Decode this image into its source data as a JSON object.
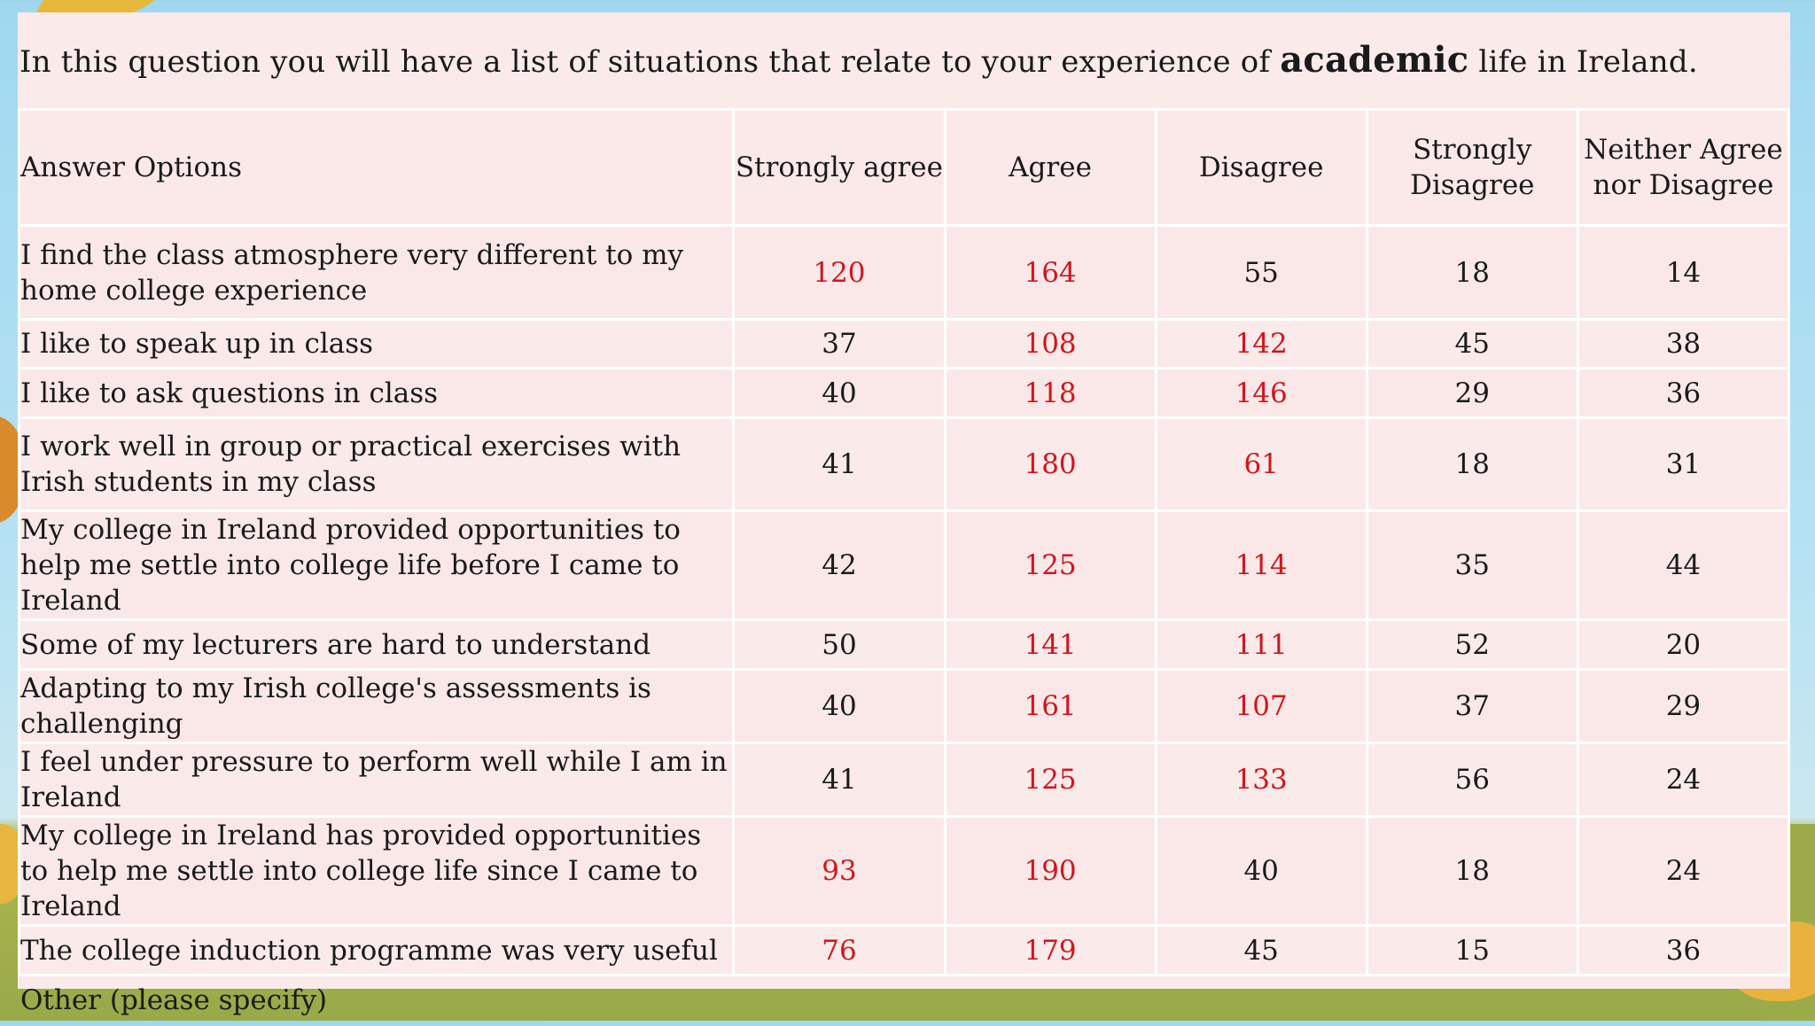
{
  "title": {
    "prefix": "In this question you will have a list of situations that relate to your experience of ",
    "emphasis": "academic",
    "suffix": " life in Ireland."
  },
  "table": {
    "header": {
      "answer_options": "Answer Options",
      "strongly_agree": "Strongly agree",
      "agree": "Agree",
      "disagree": "Disagree",
      "strongly_disagree": "Strongly Disagree",
      "neither": "Neither Agree nor Disagree"
    },
    "rows": [
      {
        "label": "I find the class atmosphere very different to my home college experience",
        "v": [
          "120",
          "164",
          "55",
          "18",
          "14"
        ]
      },
      {
        "label": "I like to speak up in class",
        "v": [
          "37",
          "108",
          "142",
          "45",
          "38"
        ]
      },
      {
        "label": "I like to ask questions in class",
        "v": [
          "40",
          "118",
          "146",
          "29",
          "36"
        ]
      },
      {
        "label": "I work well in group or practical exercises with Irish students in my class",
        "v": [
          "41",
          "180",
          "61",
          "18",
          "31"
        ]
      },
      {
        "label": "My college in Ireland provided opportunities to help me settle into college life before I came to Ireland",
        "v": [
          "42",
          "125",
          "114",
          "35",
          "44"
        ]
      },
      {
        "label": "Some of my lecturers are hard to understand",
        "v": [
          "50",
          "141",
          "111",
          "52",
          "20"
        ]
      },
      {
        "label": "Adapting to my Irish college's assessments is challenging",
        "v": [
          "40",
          "161",
          "107",
          "37",
          "29"
        ]
      },
      {
        "label": "I feel under pressure to perform well while I am in Ireland",
        "v": [
          "41",
          "125",
          "133",
          "56",
          "24"
        ]
      },
      {
        "label": "My college in Ireland has provided opportunities to help me settle into college life since I came to Ireland",
        "v": [
          "93",
          "190",
          "40",
          "18",
          "24"
        ]
      },
      {
        "label": "The college induction programme was very useful",
        "v": [
          "76",
          "179",
          "45",
          "15",
          "36"
        ]
      }
    ],
    "other": "Other (please specify)"
  },
  "colors": {
    "highlight": "#d2151c",
    "card_background": "#fbeaea"
  }
}
